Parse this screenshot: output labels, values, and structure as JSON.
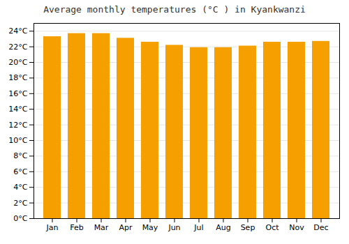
{
  "chart_data": {
    "type": "bar",
    "title": "Average monthly temperatures (°C ) in Kyankwanzi",
    "categories": [
      "Jan",
      "Feb",
      "Mar",
      "Apr",
      "May",
      "Jun",
      "Jul",
      "Aug",
      "Sep",
      "Oct",
      "Nov",
      "Dec"
    ],
    "values": [
      23.3,
      23.7,
      23.7,
      23.1,
      22.6,
      22.2,
      21.9,
      21.9,
      22.1,
      22.6,
      22.6,
      22.7
    ],
    "color": "#F5A000",
    "ylim": [
      0,
      25
    ],
    "yticks": [
      {
        "value": 0,
        "label": "0°C"
      },
      {
        "value": 2,
        "label": "2°C"
      },
      {
        "value": 4,
        "label": "4°C"
      },
      {
        "value": 6,
        "label": "6°C"
      },
      {
        "value": 8,
        "label": "8°C"
      },
      {
        "value": 10,
        "label": "10°C"
      },
      {
        "value": 12,
        "label": "12°C"
      },
      {
        "value": 14,
        "label": "14°C"
      },
      {
        "value": 16,
        "label": "16°C"
      },
      {
        "value": 18,
        "label": "18°C"
      },
      {
        "value": 20,
        "label": "20°C"
      },
      {
        "value": 22,
        "label": "22°C"
      },
      {
        "value": 24,
        "label": "24°C"
      }
    ],
    "grid": true
  }
}
